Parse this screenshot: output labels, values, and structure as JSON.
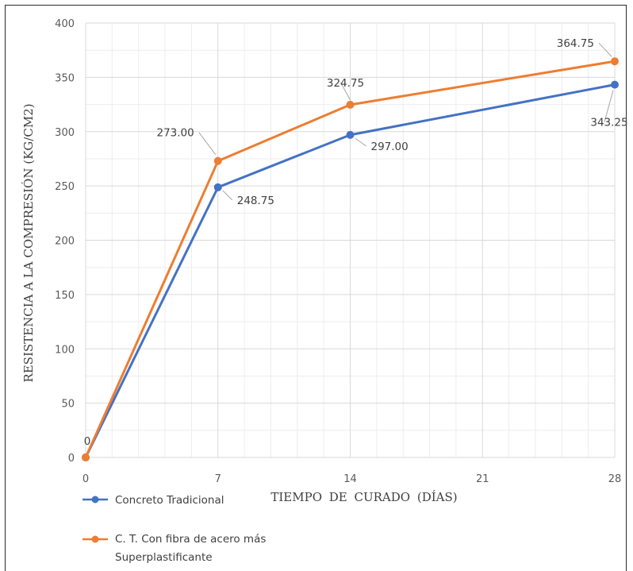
{
  "chart_data": {
    "type": "line",
    "x": [
      0,
      7,
      14,
      21,
      28
    ],
    "xlabel": "TIEMPO DE CURADO (DÍAS)",
    "ylabel": "RESISTENCIA A LA COMPRESIÓN (KG/CM2)",
    "xlim": [
      0,
      28
    ],
    "ylim": [
      0,
      400
    ],
    "x_ticks": [
      "0",
      "7",
      "14",
      "21",
      "28"
    ],
    "y_ticks": [
      "0",
      "50",
      "100",
      "150",
      "200",
      "250",
      "300",
      "350",
      "400"
    ],
    "grid": true,
    "legend_position": "bottom-left",
    "series": [
      {
        "name": "Concreto Tradicional",
        "color": "#4472C4",
        "points": [
          [
            0,
            0
          ],
          [
            7,
            248.75
          ],
          [
            14,
            297.0
          ],
          [
            28,
            343.25
          ]
        ],
        "labels": [
          "",
          "248.75",
          "297.00",
          "343.25"
        ]
      },
      {
        "name": "C. T. Con fibra de acero más Superplastificante",
        "name_lines": [
          "C. T. Con fibra de acero más",
          "Superplastificante"
        ],
        "color": "#ED7D31",
        "points": [
          [
            0,
            0
          ],
          [
            7,
            273.0
          ],
          [
            14,
            324.75
          ],
          [
            28,
            364.75
          ]
        ],
        "labels": [
          "0",
          "273.00",
          "324.75",
          "364.75"
        ]
      }
    ]
  }
}
